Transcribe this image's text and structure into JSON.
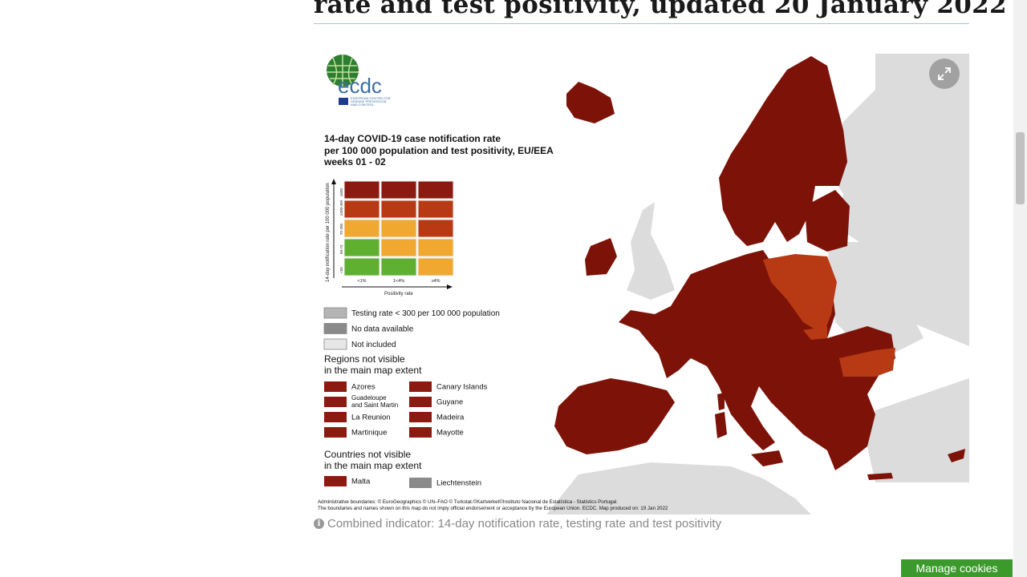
{
  "page": {
    "heading": "rate and test positivity, updated 20 January 2022",
    "caption": "Combined indicator: 14-day notification rate, testing rate and test positivity",
    "manage_cookies": "Manage cookies"
  },
  "map": {
    "logo": {
      "name": "ecdc",
      "subline1": "EUROPEAN CENTRE FOR",
      "subline2": "DISEASE PREVENTION",
      "subline3": "AND CONTROL"
    },
    "title_lines": [
      "14-day COVID-19 case notification rate",
      "per 100 000 population and test positivity, EU/EEA",
      "weeks 01 - 02"
    ],
    "matrix": {
      "y_axis_label": "14-day notification rate per 100 000 population",
      "x_axis_label": "Positivity rate",
      "row_labels": [
        "≥500",
        "≥200-499",
        "75-200",
        "50-74",
        "<50"
      ],
      "col_labels": [
        "<1%",
        "1<4%",
        "≥4%"
      ],
      "colors": [
        [
          "#8b1a10",
          "#8b1a10",
          "#8b1a10"
        ],
        [
          "#b83a15",
          "#b83a15",
          "#b83a15"
        ],
        [
          "#f0a830",
          "#f0a830",
          "#b83a15"
        ],
        [
          "#5fb030",
          "#f0a830",
          "#f0a830"
        ],
        [
          "#5fb030",
          "#5fb030",
          "#f0a830"
        ]
      ]
    },
    "legend_items": [
      {
        "label": "Testing rate < 300 per 100 000 population",
        "color": "#b5b5b5"
      },
      {
        "label": "No data available",
        "color": "#8a8a8a"
      },
      {
        "label": "Not included",
        "color": "#e6e6e6"
      }
    ],
    "regions_heading": [
      "Regions not visible",
      "in the main map extent"
    ],
    "regions_left": [
      {
        "label": [
          "Azores"
        ],
        "color": "#8b1a10"
      },
      {
        "label": [
          "Guadeloupe",
          "and Saint Martin"
        ],
        "color": "#8b1a10"
      },
      {
        "label": [
          "La Reunion"
        ],
        "color": "#8b1a10"
      },
      {
        "label": [
          "Martinique"
        ],
        "color": "#8b1a10"
      }
    ],
    "regions_right": [
      {
        "label": [
          "Canary Islands"
        ],
        "color": "#8b1a10"
      },
      {
        "label": [
          "Guyane"
        ],
        "color": "#8b1a10"
      },
      {
        "label": [
          "Madeira"
        ],
        "color": "#8b1a10"
      },
      {
        "label": [
          "Mayotte"
        ],
        "color": "#8b1a10"
      }
    ],
    "countries_heading": [
      "Countries not visible",
      "in the main map extent"
    ],
    "countries": [
      {
        "label": "Malta",
        "color": "#8b1a10"
      },
      {
        "label": "Liechtenstein",
        "color": "#8a8a8a"
      }
    ],
    "footer_lines": [
      "Administrative boundaries: © EuroGeographics © UN–FAO © Turkstat.©Kartverket©Instituto Nacional de Estatística - Statistics Portugal.",
      "The boundaries and names shown on this map do not imply official endorsement or acceptance by the European Union. ECDC. Map produced on: 19 Jan 2022"
    ],
    "colors": {
      "dark_red": "#7d1308",
      "orange_red": "#b83a15",
      "non_eu_grey": "#dcdcdc",
      "water": "#ffffff"
    },
    "icons": {
      "expand": "expand-icon",
      "info": "info-icon"
    }
  }
}
